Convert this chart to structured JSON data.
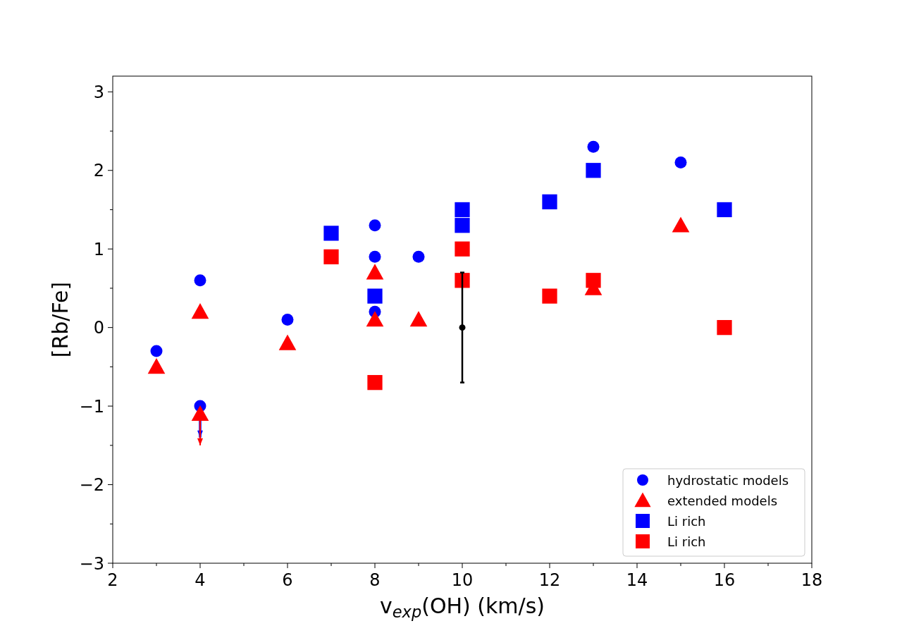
{
  "chart_data": {
    "type": "scatter",
    "xlabel": "v$_{exp}$(OH) (km/s)",
    "ylabel": "[Rb/Fe]",
    "xlim": [
      2,
      18
    ],
    "ylim": [
      -3,
      3.2
    ],
    "xticks": [
      2,
      {
        "value": 3,
        "label": null
      },
      4,
      {
        "value": 5,
        "label": null
      },
      6,
      {
        "value": 7,
        "label": null
      },
      8,
      {
        "value": 9,
        "label": null
      },
      10,
      {
        "value": 11,
        "label": null
      },
      12,
      {
        "value": 13,
        "label": null
      },
      14,
      {
        "value": 15,
        "label": null
      },
      16,
      {
        "value": 17,
        "label": null
      },
      18
    ],
    "yticks": [
      {
        "value": -3,
        "label": "−3"
      },
      {
        "value": -2.5,
        "label": null
      },
      {
        "value": -2,
        "label": "−2"
      },
      {
        "value": -1.5,
        "label": null
      },
      {
        "value": -1,
        "label": "−1"
      },
      {
        "value": -0.5,
        "label": null
      },
      0,
      {
        "value": 0.5,
        "label": null
      },
      1,
      {
        "value": 1.5,
        "label": null
      },
      2,
      {
        "value": 2.5,
        "label": null
      },
      3
    ],
    "legend": "bottom right",
    "grid": false,
    "series": [
      {
        "name": "hydrostatic models",
        "color": "#0000ff",
        "marker": "circle",
        "x": [
          3,
          4,
          4,
          6,
          8,
          8,
          8,
          9,
          13,
          15
        ],
        "values": [
          -0.3,
          0.6,
          -1.0,
          0.1,
          1.3,
          0.9,
          0.2,
          0.9,
          2.3,
          2.1
        ],
        "errors": [
          null,
          null,
          [
            -1.4,
            -1.0
          ],
          null,
          null,
          null,
          null,
          null,
          null,
          null
        ]
      },
      {
        "name": "extended models",
        "color": "#ff0000",
        "marker": "triangle",
        "x": [
          3,
          4,
          4,
          6,
          8,
          8,
          9,
          13,
          15
        ],
        "values": [
          -0.5,
          0.2,
          -1.1,
          -0.2,
          0.7,
          0.1,
          0.1,
          0.5,
          1.3
        ],
        "errors": [
          null,
          null,
          [
            -1.5,
            -1.1
          ],
          null,
          null,
          null,
          null,
          null,
          null
        ]
      },
      {
        "name": "Li rich",
        "color": "#0000ff",
        "marker": "square",
        "x": [
          7,
          8,
          10,
          10,
          12,
          13,
          16
        ],
        "values": [
          1.2,
          0.4,
          1.5,
          1.3,
          1.6,
          2.0,
          1.5
        ]
      },
      {
        "name": "Li rich",
        "color": "#ff0000",
        "marker": "square",
        "x": [
          7,
          8,
          10,
          10,
          12,
          13,
          16
        ],
        "values": [
          0.9,
          -0.7,
          1.0,
          0.6,
          0.4,
          0.6,
          0.0
        ]
      },
      {
        "color": "#000000",
        "marker": "circle",
        "x": [
          10
        ],
        "values": [
          0
        ],
        "errors": [
          0.7
        ]
      }
    ]
  }
}
